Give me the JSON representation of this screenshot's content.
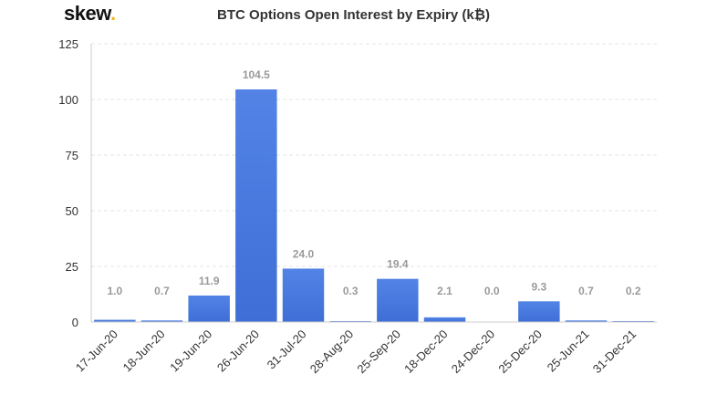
{
  "branding": {
    "logo_text": "skew",
    "logo_dot": ".",
    "accent_color": "#f0b323"
  },
  "chart_data": {
    "type": "bar",
    "title": "BTC Options Open Interest by Expiry (k₿)",
    "xlabel": "",
    "ylabel": "",
    "categories": [
      "17-Jun-20",
      "18-Jun-20",
      "19-Jun-20",
      "26-Jun-20",
      "31-Jul-20",
      "28-Aug-20",
      "25-Sep-20",
      "18-Dec-20",
      "24-Dec-20",
      "25-Dec-20",
      "25-Jun-21",
      "31-Dec-21"
    ],
    "values": [
      1.0,
      0.7,
      11.9,
      104.5,
      24.0,
      0.3,
      19.4,
      2.1,
      0.0,
      9.3,
      0.7,
      0.2
    ],
    "data_labels": [
      "1.0",
      "0.7",
      "11.9",
      "104.5",
      "24.0",
      "0.3",
      "19.4",
      "2.1",
      "0.0",
      "9.3",
      "0.7",
      "0.2"
    ],
    "ylim": [
      0,
      125
    ],
    "yticks": [
      0,
      25,
      50,
      75,
      100,
      125
    ],
    "grid": true,
    "legend": "none",
    "bar_color": "#5283e5",
    "bar_color_dark": "#3f6fd6"
  }
}
